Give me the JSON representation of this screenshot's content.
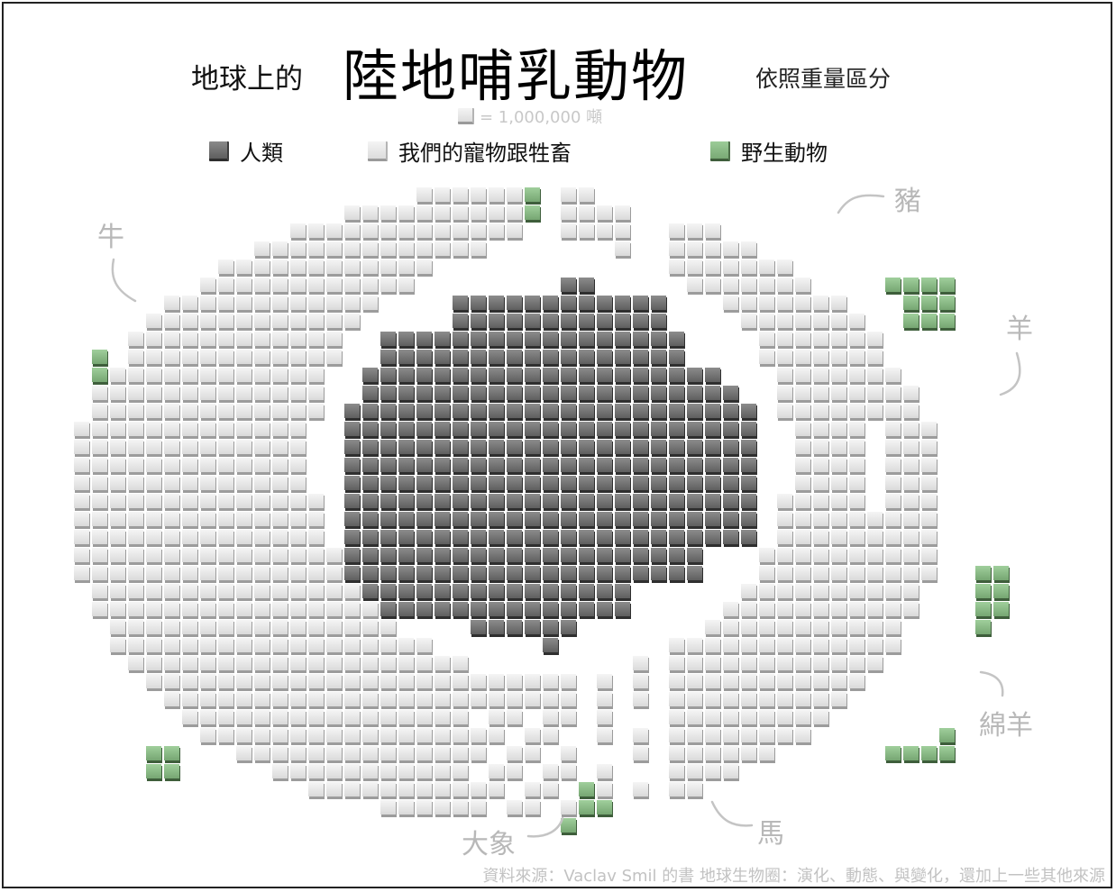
{
  "title": {
    "prefix": "地球上的",
    "main": "陸地哺乳動物",
    "suffix": "依照重量區分"
  },
  "unit_label": "= 1,000,000 噸",
  "legend": [
    {
      "key": "human",
      "label": "人類"
    },
    {
      "key": "livestock",
      "label": "我們的寵物跟牲畜"
    },
    {
      "key": "wild",
      "label": "野生動物"
    }
  ],
  "annotations": {
    "cattle": "牛",
    "pigs": "豬",
    "goats": "羊",
    "sheep": "綿羊",
    "horses": "馬",
    "elephants": "大象"
  },
  "source": "資料來源：Vaclav Smil 的書 地球生物圈：演化、動態、與變化，還加上一些其他來源",
  "colors": {
    "human": "#6e6e6e",
    "livestock": "#e6e6e6",
    "wild": "#8fbf8b"
  },
  "chart_data": {
    "type": "waffle",
    "unit": "1,000,000 噸 per square",
    "categories": [
      "人類",
      "我們的寵物跟牲畜",
      "野生動物"
    ],
    "values": [
      390,
      630,
      35
    ]
  }
}
